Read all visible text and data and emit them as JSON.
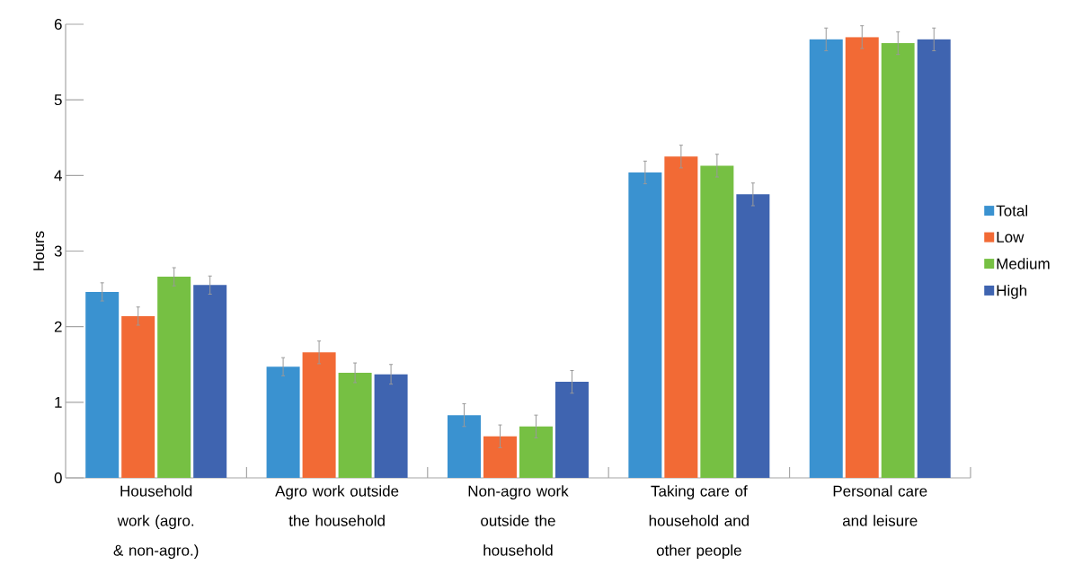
{
  "chart_data": {
    "type": "bar",
    "ylabel": "Hours",
    "categories": [
      "Household work (agro. & non-agro.)",
      "Agro work outside the household",
      "Non-agro work outside the household",
      "Taking care of household and other people",
      "Personal care and leisure"
    ],
    "series": [
      {
        "name": "Total",
        "color": "#3a92d0",
        "values": [
          2.46,
          1.47,
          0.83,
          4.04,
          5.8
        ],
        "errors": [
          0.12,
          0.12,
          0.15,
          0.15,
          0.15
        ]
      },
      {
        "name": "Low",
        "color": "#f26a35",
        "values": [
          2.14,
          1.66,
          0.55,
          4.25,
          5.83
        ],
        "errors": [
          0.12,
          0.15,
          0.15,
          0.15,
          0.15
        ]
      },
      {
        "name": "Medium",
        "color": "#76c043",
        "values": [
          2.66,
          1.39,
          0.68,
          4.13,
          5.75
        ],
        "errors": [
          0.12,
          0.13,
          0.15,
          0.15,
          0.15
        ]
      },
      {
        "name": "High",
        "color": "#3f64b0",
        "values": [
          2.55,
          1.37,
          1.27,
          3.75,
          5.8
        ],
        "errors": [
          0.12,
          0.13,
          0.15,
          0.15,
          0.15
        ]
      }
    ],
    "ylim": [
      0,
      6
    ],
    "yticks": [
      0,
      1,
      2,
      3,
      4,
      5,
      6
    ],
    "legend": "right",
    "grid": false
  }
}
